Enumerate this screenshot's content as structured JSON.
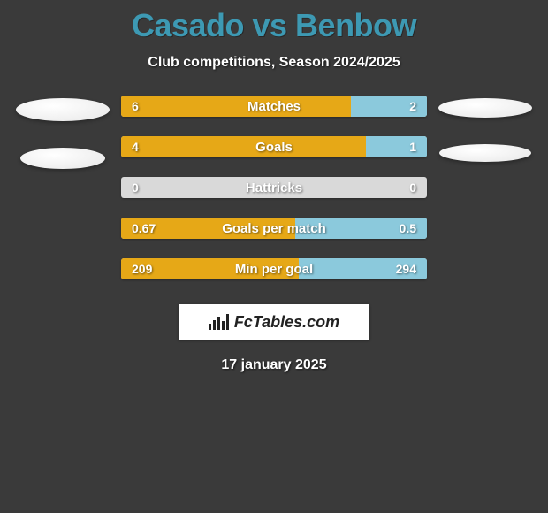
{
  "title": "Casado vs Benbow",
  "subtitle": "Club competitions, Season 2024/2025",
  "footer_date": "17 january 2025",
  "brand": {
    "label": "FcTables.com"
  },
  "colors": {
    "background": "#3a3a3a",
    "title": "#3d99b3",
    "text": "#ffffff",
    "left_bar": "#e6a817",
    "right_bar": "#8bc9dc",
    "bar_empty": "#d9d9d9"
  },
  "avatars": {
    "left": [
      {
        "width": 106,
        "height": 26
      },
      {
        "width": 96,
        "height": 24
      }
    ],
    "right": [
      {
        "width": 106,
        "height": 22
      },
      {
        "width": 104,
        "height": 20
      }
    ]
  },
  "stats": [
    {
      "label": "Matches",
      "left_value": "6",
      "right_value": "2",
      "left_pct": 75,
      "right_pct": 25
    },
    {
      "label": "Goals",
      "left_value": "4",
      "right_value": "1",
      "left_pct": 80,
      "right_pct": 20
    },
    {
      "label": "Hattricks",
      "left_value": "0",
      "right_value": "0",
      "left_pct": 0,
      "right_pct": 0
    },
    {
      "label": "Goals per match",
      "left_value": "0.67",
      "right_value": "0.5",
      "left_pct": 57,
      "right_pct": 43
    },
    {
      "label": "Min per goal",
      "left_value": "209",
      "right_value": "294",
      "left_pct": 58,
      "right_pct": 42
    }
  ]
}
